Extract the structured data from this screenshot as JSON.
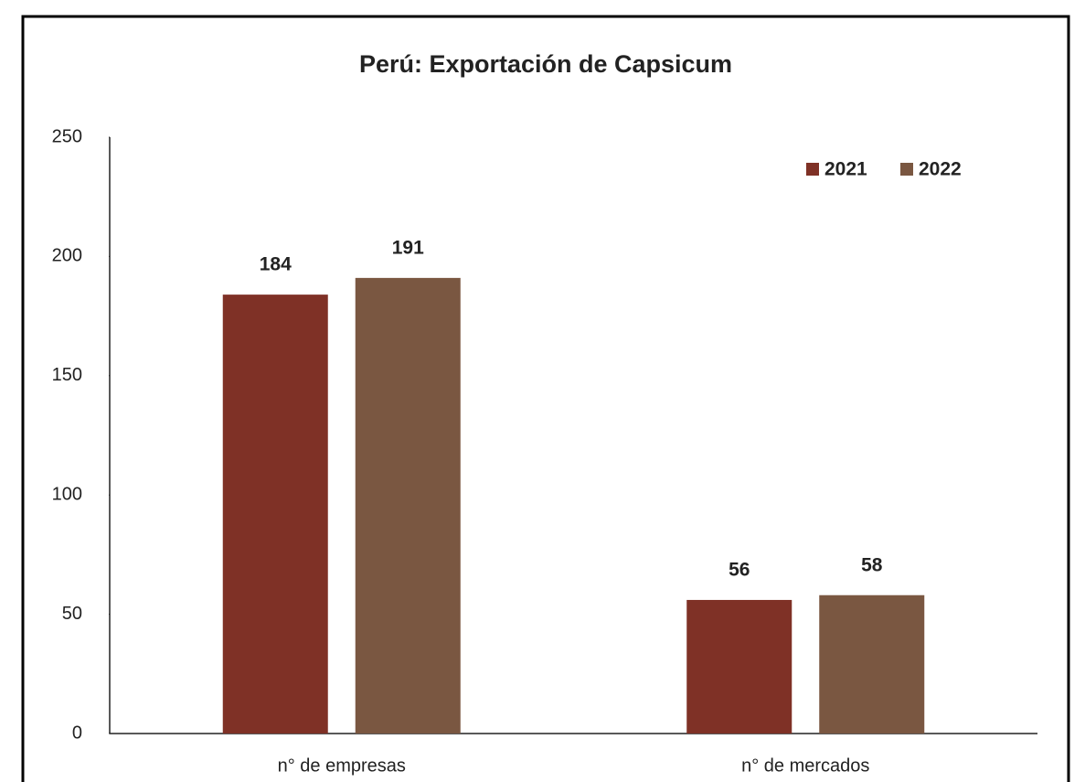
{
  "chart_data": {
    "type": "bar",
    "title": "Perú: Exportación de Capsicum",
    "categories": [
      "n° de empresas",
      "n° de mercados"
    ],
    "series": [
      {
        "name": "2021",
        "color": "#7f3126",
        "values": [
          184,
          56
        ]
      },
      {
        "name": "2022",
        "color": "#7a5741",
        "values": [
          191,
          58
        ]
      }
    ],
    "ylim": [
      0,
      250
    ],
    "yticks": [
      0,
      50,
      100,
      150,
      200,
      250
    ],
    "grid": false,
    "legend": "top-right"
  }
}
